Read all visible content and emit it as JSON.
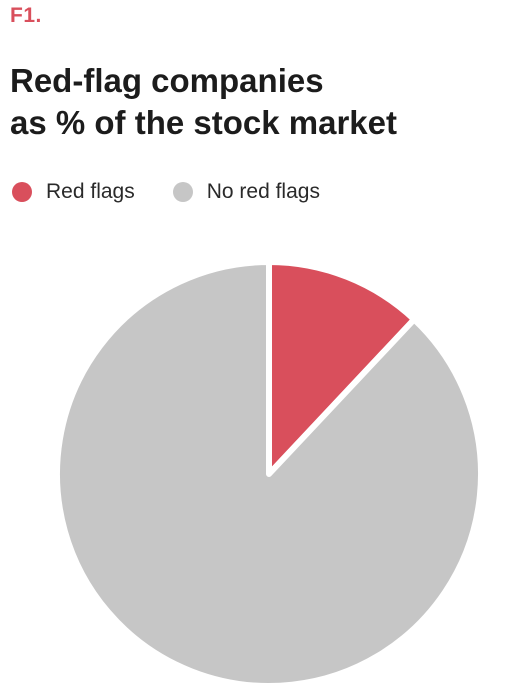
{
  "figure": {
    "label": "F1."
  },
  "chart_data": {
    "type": "pie",
    "title_lines": [
      "Red-flag companies",
      "as % of the stock market"
    ],
    "slices": [
      {
        "name": "Red flags",
        "value": 12,
        "color": "#d94f5c"
      },
      {
        "name": "No red flags",
        "value": 88,
        "color": "#c6c6c6"
      }
    ],
    "start_angle_deg": 0,
    "direction": "clockwise",
    "legend_position": "top-left"
  }
}
